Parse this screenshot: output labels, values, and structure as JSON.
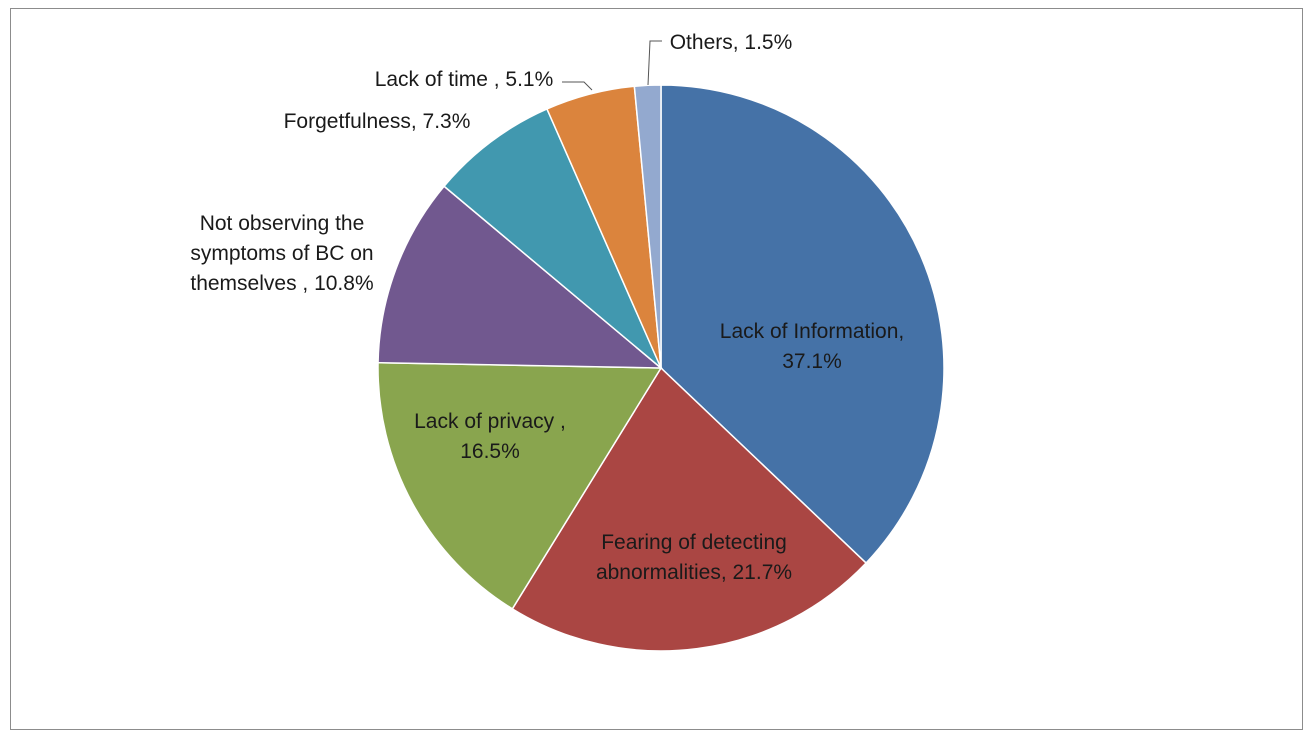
{
  "chart_data": {
    "type": "pie",
    "title": "",
    "start_angle_deg": 0,
    "direction": "clockwise",
    "slices": [
      {
        "label": "Lack of Information",
        "value": 37.1,
        "color": "#4572A7",
        "label_lines": [
          "Lack of Information,",
          "37.1%"
        ],
        "label_position": "inside"
      },
      {
        "label": "Fearing of detecting abnormalities",
        "value": 21.7,
        "color": "#AA4643",
        "label_lines": [
          "Fearing of detecting",
          "abnormalities, 21.7%"
        ],
        "label_position": "inside"
      },
      {
        "label": "Lack of privacy",
        "value": 16.5,
        "color": "#89A54E",
        "label_lines": [
          "Lack of privacy ,",
          "16.5%"
        ],
        "label_position": "inside"
      },
      {
        "label": "Not observing the symptoms of BC on themselves",
        "value": 10.8,
        "color": "#71588F",
        "label_lines": [
          "Not observing the",
          "symptoms of BC on",
          "themselves , 10.8%"
        ],
        "label_position": "outside"
      },
      {
        "label": "Forgetfulness",
        "value": 7.3,
        "color": "#4198AF",
        "label_lines": [
          "Forgetfulness, 7.3%"
        ],
        "label_position": "outside"
      },
      {
        "label": "Lack of time",
        "value": 5.1,
        "color": "#DB843D",
        "label_lines": [
          "Lack of time , 5.1%"
        ],
        "label_position": "outside"
      },
      {
        "label": "Others",
        "value": 1.5,
        "color": "#93A9CF",
        "label_lines": [
          "Others, 1.5%"
        ],
        "label_position": "outside"
      }
    ]
  }
}
